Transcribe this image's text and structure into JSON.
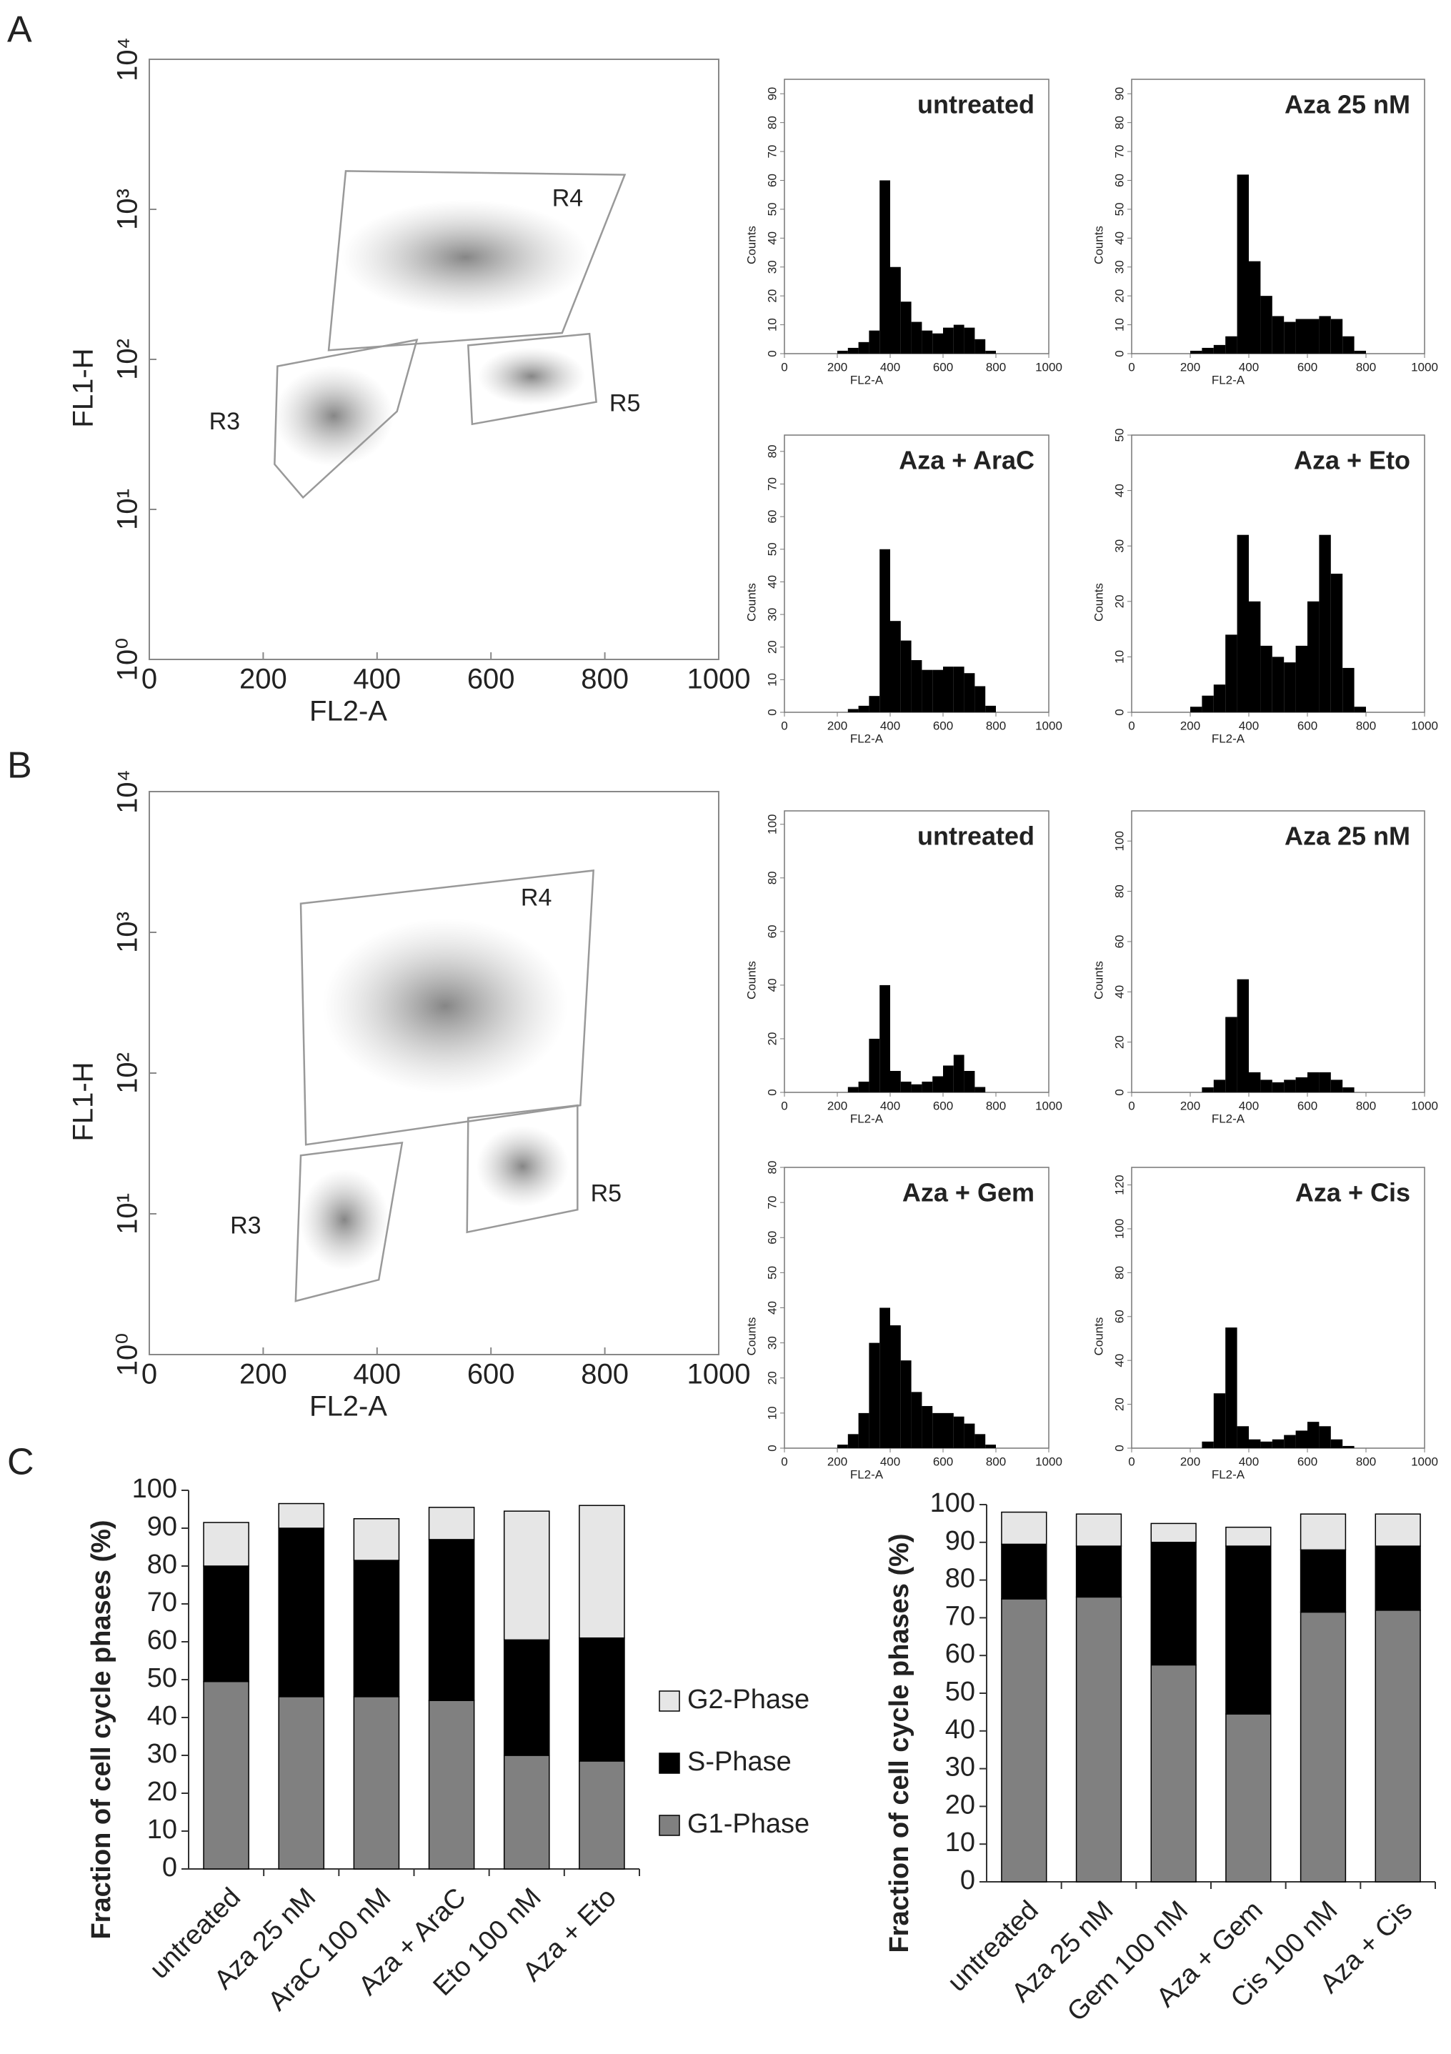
{
  "panel_labels": [
    "A",
    "B",
    "C"
  ],
  "chart_data": [
    {
      "type": "density",
      "xlabel": "FL2-A",
      "ylabel": "FL1-H",
      "xlim": [
        0,
        1000
      ],
      "xticks": [
        0,
        200,
        400,
        600,
        800,
        1000
      ],
      "ylim": [
        1,
        10000
      ],
      "log_y": true,
      "yticks": [
        {
          "value": 1,
          "label": "10⁰"
        },
        {
          "value": 10,
          "label": "10¹"
        },
        {
          "value": 100,
          "label": "10²"
        },
        {
          "value": 1000,
          "label": "10³"
        },
        {
          "value": 10000,
          "label": "10⁴"
        }
      ],
      "gates": [
        {
          "name": "R4",
          "points": [
            [
              345,
              1800
            ],
            [
              835,
              1700
            ],
            [
              725,
              150
            ],
            [
              315,
              115
            ]
          ]
        },
        {
          "name": "R3",
          "points": [
            [
              225,
              90
            ],
            [
              470,
              135
            ],
            [
              435,
              45
            ],
            [
              270,
              12
            ],
            [
              220,
              20
            ]
          ]
        },
        {
          "name": "R5",
          "points": [
            [
              560,
              124
            ],
            [
              773,
              148
            ],
            [
              785,
              52
            ],
            [
              567,
              37
            ]
          ]
        }
      ]
    },
    {
      "type": "histogram",
      "title": "untreated",
      "xlabel": "FL2-A",
      "ylabel": "Counts",
      "xlim": [
        0,
        1000
      ],
      "xticks": [
        0,
        200,
        400,
        600,
        800,
        1000
      ],
      "ylim": [
        0,
        95
      ],
      "yticks": [
        0,
        10,
        20,
        30,
        40,
        50,
        60,
        70,
        80,
        90
      ],
      "bins": [
        200,
        240,
        280,
        320,
        360,
        400,
        440,
        480,
        520,
        560,
        600,
        640,
        680,
        720,
        760,
        800
      ],
      "counts": [
        1,
        2,
        4,
        8,
        60,
        30,
        18,
        11,
        8,
        7,
        9,
        10,
        9,
        5,
        1
      ]
    },
    {
      "type": "histogram",
      "title": "Aza 25 nM",
      "xlabel": "FL2-A",
      "ylabel": "Counts",
      "xlim": [
        0,
        1000
      ],
      "xticks": [
        0,
        200,
        400,
        600,
        800,
        1000
      ],
      "ylim": [
        0,
        95
      ],
      "yticks": [
        0,
        10,
        20,
        30,
        40,
        50,
        60,
        70,
        80,
        90
      ],
      "bins": [
        200,
        240,
        280,
        320,
        360,
        400,
        440,
        480,
        520,
        560,
        600,
        640,
        680,
        720,
        760,
        800
      ],
      "counts": [
        1,
        2,
        3,
        6,
        62,
        32,
        20,
        13,
        11,
        12,
        12,
        13,
        12,
        6,
        1
      ]
    },
    {
      "type": "histogram",
      "title": "Aza + AraC",
      "xlabel": "FL2-A",
      "ylabel": "Counts",
      "xlim": [
        0,
        1000
      ],
      "xticks": [
        0,
        200,
        400,
        600,
        800,
        1000
      ],
      "ylim": [
        0,
        85
      ],
      "yticks": [
        0,
        10,
        20,
        30,
        40,
        50,
        60,
        70,
        80
      ],
      "bins": [
        200,
        240,
        280,
        320,
        360,
        400,
        440,
        480,
        520,
        560,
        600,
        640,
        680,
        720,
        760,
        800
      ],
      "counts": [
        0,
        1,
        2,
        5,
        50,
        28,
        22,
        16,
        13,
        13,
        14,
        14,
        12,
        8,
        2
      ]
    },
    {
      "type": "histogram",
      "title": "Aza + Eto",
      "xlabel": "FL2-A",
      "ylabel": "Counts",
      "xlim": [
        0,
        1000
      ],
      "xticks": [
        0,
        200,
        400,
        600,
        800,
        1000
      ],
      "ylim": [
        0,
        50
      ],
      "yticks": [
        0,
        10,
        20,
        30,
        40,
        50
      ],
      "bins": [
        200,
        240,
        280,
        320,
        360,
        400,
        440,
        480,
        520,
        560,
        600,
        640,
        680,
        720,
        760,
        800
      ],
      "counts": [
        1,
        3,
        5,
        14,
        32,
        20,
        12,
        10,
        9,
        12,
        20,
        32,
        25,
        8,
        1
      ]
    },
    {
      "type": "density",
      "xlabel": "FL2-A",
      "ylabel": "FL1-H",
      "xlim": [
        0,
        1000
      ],
      "xticks": [
        0,
        200,
        400,
        600,
        800,
        1000
      ],
      "ylim": [
        1,
        10000
      ],
      "log_y": true,
      "yticks": [
        {
          "value": 1,
          "label": "10⁰"
        },
        {
          "value": 10,
          "label": "10¹"
        },
        {
          "value": 100,
          "label": "10²"
        },
        {
          "value": 1000,
          "label": "10³"
        },
        {
          "value": 10000,
          "label": "10⁴"
        }
      ],
      "gates": [
        {
          "name": "R4",
          "points": [
            [
              266,
              1600
            ],
            [
              780,
              2750
            ],
            [
              757,
              59
            ],
            [
              275,
              31
            ]
          ]
        },
        {
          "name": "R3",
          "points": [
            [
              266,
              26
            ],
            [
              444,
              32
            ],
            [
              403,
              3.4
            ],
            [
              257,
              2.4
            ]
          ]
        },
        {
          "name": "R5",
          "points": [
            [
              560,
              48
            ],
            [
              752,
              59
            ],
            [
              752,
              10.7
            ],
            [
              558,
              7.4
            ]
          ]
        }
      ]
    },
    {
      "type": "histogram",
      "title": "untreated",
      "xlabel": "FL2-A",
      "ylabel": "Counts",
      "xlim": [
        0,
        1000
      ],
      "xticks": [
        0,
        200,
        400,
        600,
        800,
        1000
      ],
      "ylim": [
        0,
        105
      ],
      "yticks": [
        0,
        20,
        40,
        60,
        80,
        100
      ],
      "bins": [
        200,
        240,
        280,
        320,
        360,
        400,
        440,
        480,
        520,
        560,
        600,
        640,
        680,
        720,
        760,
        800
      ],
      "counts": [
        0,
        2,
        4,
        20,
        40,
        8,
        4,
        3,
        4,
        6,
        10,
        14,
        8,
        2,
        0
      ]
    },
    {
      "type": "histogram",
      "title": "Aza 25 nM",
      "xlabel": "FL2-A",
      "ylabel": "Counts",
      "xlim": [
        0,
        1000
      ],
      "xticks": [
        0,
        200,
        400,
        600,
        800,
        1000
      ],
      "ylim": [
        0,
        112
      ],
      "yticks": [
        0,
        20,
        40,
        60,
        80,
        100
      ],
      "bins": [
        200,
        240,
        280,
        320,
        360,
        400,
        440,
        480,
        520,
        560,
        600,
        640,
        680,
        720,
        760,
        800
      ],
      "counts": [
        0,
        2,
        5,
        30,
        45,
        8,
        5,
        4,
        5,
        6,
        8,
        8,
        5,
        2,
        0
      ]
    },
    {
      "type": "histogram",
      "title": "Aza + Gem",
      "xlabel": "FL2-A",
      "ylabel": "Counts",
      "xlim": [
        0,
        1000
      ],
      "xticks": [
        0,
        200,
        400,
        600,
        800,
        1000
      ],
      "ylim": [
        0,
        80
      ],
      "yticks": [
        0,
        10,
        20,
        30,
        40,
        50,
        60,
        70,
        80
      ],
      "bins": [
        200,
        240,
        280,
        320,
        360,
        400,
        440,
        480,
        520,
        560,
        600,
        640,
        680,
        720,
        760,
        800
      ],
      "counts": [
        1,
        4,
        10,
        30,
        40,
        35,
        25,
        16,
        12,
        10,
        10,
        9,
        7,
        4,
        1
      ]
    },
    {
      "type": "histogram",
      "title": "Aza + Cis",
      "xlabel": "FL2-A",
      "ylabel": "Counts",
      "xlim": [
        0,
        1000
      ],
      "xticks": [
        0,
        200,
        400,
        600,
        800,
        1000
      ],
      "ylim": [
        0,
        128
      ],
      "yticks": [
        0,
        20,
        40,
        60,
        80,
        100,
        120
      ],
      "bins": [
        200,
        240,
        280,
        320,
        360,
        400,
        440,
        480,
        520,
        560,
        600,
        640,
        680,
        720,
        760,
        800
      ],
      "counts": [
        0,
        3,
        25,
        55,
        10,
        4,
        3,
        4,
        6,
        8,
        12,
        10,
        4,
        1,
        0
      ]
    },
    {
      "type": "stacked_bar",
      "ylabel": "Fraction of cell cycle phases (%)",
      "ylim": [
        0,
        100
      ],
      "yticks": [
        0,
        10,
        20,
        30,
        40,
        50,
        60,
        70,
        80,
        90,
        100
      ],
      "categories": [
        "untreated",
        "Aza 25 nM",
        "AraC 100 nM",
        "Aza + AraC",
        "Eto 100 nM",
        "Aza + Eto"
      ],
      "series": [
        {
          "name": "G1-Phase",
          "color": "#808080",
          "values": [
            49.5,
            45.5,
            45.5,
            44.5,
            30,
            28.5
          ]
        },
        {
          "name": "S-Phase",
          "color": "#000000",
          "values": [
            30.5,
            44.5,
            36,
            42.5,
            30.5,
            32.5
          ]
        },
        {
          "name": "G2-Phase",
          "color": "#e6e6e6",
          "values": [
            11.5,
            6.5,
            11,
            8.5,
            34,
            35
          ]
        }
      ]
    },
    {
      "type": "stacked_bar",
      "ylabel": "Fraction of cell cycle phases (%)",
      "ylim": [
        0,
        100
      ],
      "yticks": [
        0,
        10,
        20,
        30,
        40,
        50,
        60,
        70,
        80,
        90,
        100
      ],
      "categories": [
        "untreated",
        "Aza 25 nM",
        "Gem 100 nM",
        "Aza + Gem",
        "Cis 100 nM",
        "Aza + Cis"
      ],
      "series": [
        {
          "color": "#808080",
          "values": [
            75,
            75.5,
            57.5,
            44.5,
            71.5,
            72
          ]
        },
        {
          "color": "#000000",
          "values": [
            14.5,
            13.5,
            32.5,
            44.5,
            16.5,
            17
          ]
        },
        {
          "color": "#e6e6e6",
          "values": [
            8.5,
            8.5,
            5,
            5,
            9.5,
            8.5
          ]
        }
      ]
    }
  ]
}
